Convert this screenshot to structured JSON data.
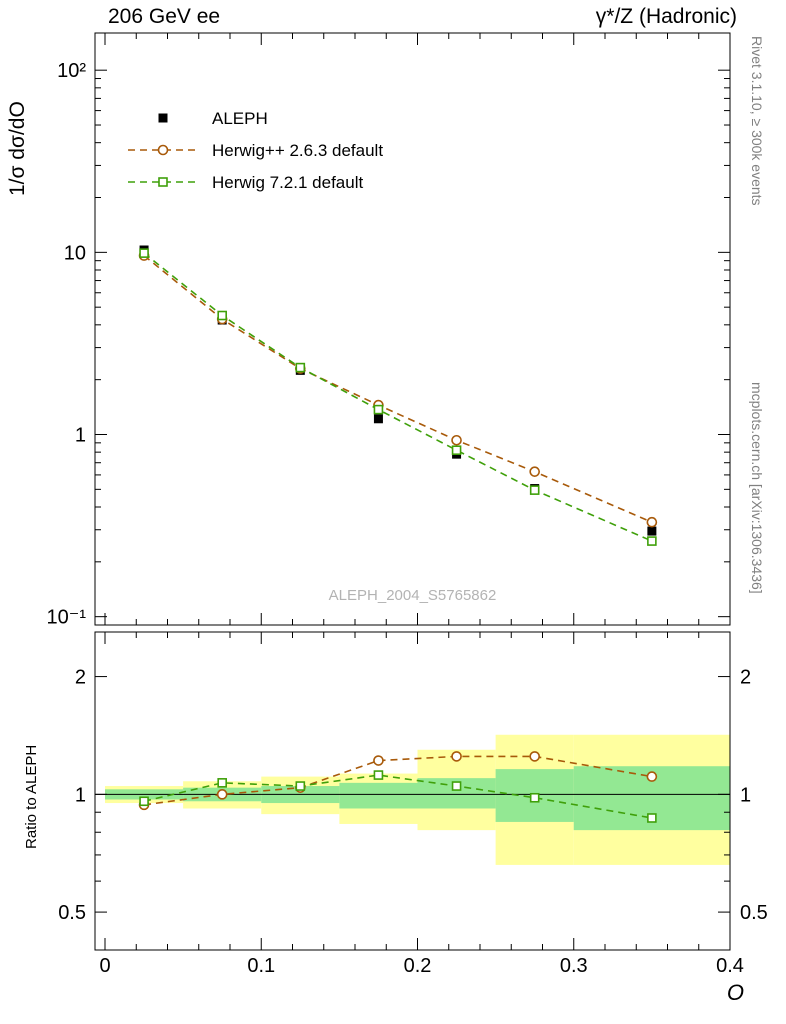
{
  "header": {
    "title_left": "206 GeV ee",
    "title_right": "γ*/Z (Hadronic)"
  },
  "sidenotes": {
    "top": "Rivet 3.1.10, ≥ 300k events",
    "bottom": "mcplots.cern.ch [arXiv:1306.3436]"
  },
  "chart_data": {
    "type": "line",
    "title": "206 GeV ee — γ*/Z (Hadronic)",
    "watermark": "ALEPH_2004_S5765862",
    "xlabel": "O",
    "ylabel_main": "1/σ dσ/dO",
    "ylabel_ratio": "Ratio to ALEPH",
    "xlim": [
      -0.0064,
      0.4
    ],
    "xticks": [
      0,
      0.1,
      0.2,
      0.3,
      0.4
    ],
    "xtick_labels": [
      "0",
      "0.1",
      "0.2",
      "0.3",
      "0.4"
    ],
    "x": [
      0.025,
      0.075,
      0.125,
      0.175,
      0.225,
      0.275,
      0.35
    ],
    "main": {
      "yscale": "log",
      "ylim": [
        0.09,
        160
      ],
      "yticks_major": [
        100,
        10,
        1,
        0.1
      ],
      "ytick_labels": [
        "10²",
        "10",
        "1",
        "10⁻¹"
      ],
      "series": [
        {
          "name": "ALEPH",
          "role": "data",
          "marker": "filled-square",
          "color": "#000000",
          "values": [
            10.3,
            4.25,
            2.25,
            1.22,
            0.78,
            0.505,
            0.295
          ],
          "errors": [
            0.3,
            0.12,
            0.07,
            0.04,
            0.03,
            0.02,
            0.015
          ]
        },
        {
          "name": "Herwig++ 2.6.3 default",
          "role": "mc",
          "marker": "open-circle",
          "color": "#a85a0a",
          "line": "dashed",
          "values": [
            9.6,
            4.3,
            2.3,
            1.45,
            0.93,
            0.625,
            0.33
          ]
        },
        {
          "name": "Herwig 7.2.1 default",
          "role": "mc",
          "marker": "open-square",
          "color": "#3fa00a",
          "line": "dashed",
          "values": [
            9.9,
            4.5,
            2.33,
            1.37,
            0.82,
            0.495,
            0.26
          ]
        }
      ]
    },
    "ratio": {
      "yscale": "log",
      "ylim": [
        0.4,
        2.6
      ],
      "yticks": [
        2,
        1,
        0.5
      ],
      "ytick_labels": [
        "2",
        "1",
        "0.5"
      ],
      "reference": "ALEPH",
      "bands": {
        "bin_edges": [
          0,
          0.05,
          0.1,
          0.15,
          0.2,
          0.25,
          0.3,
          0.4
        ],
        "yellow_color": "#ffff9f",
        "green_color": "#93e893",
        "yellow": [
          [
            0.95,
            1.05
          ],
          [
            0.92,
            1.08
          ],
          [
            0.89,
            1.11
          ],
          [
            0.84,
            1.13
          ],
          [
            0.81,
            1.3
          ],
          [
            0.66,
            1.42
          ],
          [
            0.66,
            1.42
          ]
        ],
        "green": [
          [
            0.97,
            1.03
          ],
          [
            0.96,
            1.04
          ],
          [
            0.95,
            1.05
          ],
          [
            0.92,
            1.07
          ],
          [
            0.92,
            1.1
          ],
          [
            0.85,
            1.16
          ],
          [
            0.81,
            1.18
          ]
        ]
      },
      "series": [
        {
          "name": "Herwig++ 2.6.3 default",
          "marker": "open-circle",
          "color": "#a85a0a",
          "line": "dashed",
          "values": [
            0.94,
            1.0,
            1.04,
            1.22,
            1.25,
            1.25,
            1.11
          ]
        },
        {
          "name": "Herwig 7.2.1 default",
          "marker": "open-square",
          "color": "#3fa00a",
          "line": "dashed",
          "values": [
            0.96,
            1.07,
            1.05,
            1.12,
            1.05,
            0.98,
            0.87
          ]
        }
      ]
    },
    "legend": [
      {
        "label": "ALEPH",
        "marker": "filled-square",
        "color": "#000000"
      },
      {
        "label": "Herwig++ 2.6.3 default",
        "marker": "open-circle",
        "color": "#a85a0a",
        "line": "dashed"
      },
      {
        "label": "Herwig 7.2.1 default",
        "marker": "open-square",
        "color": "#3fa00a",
        "line": "dashed"
      }
    ]
  }
}
